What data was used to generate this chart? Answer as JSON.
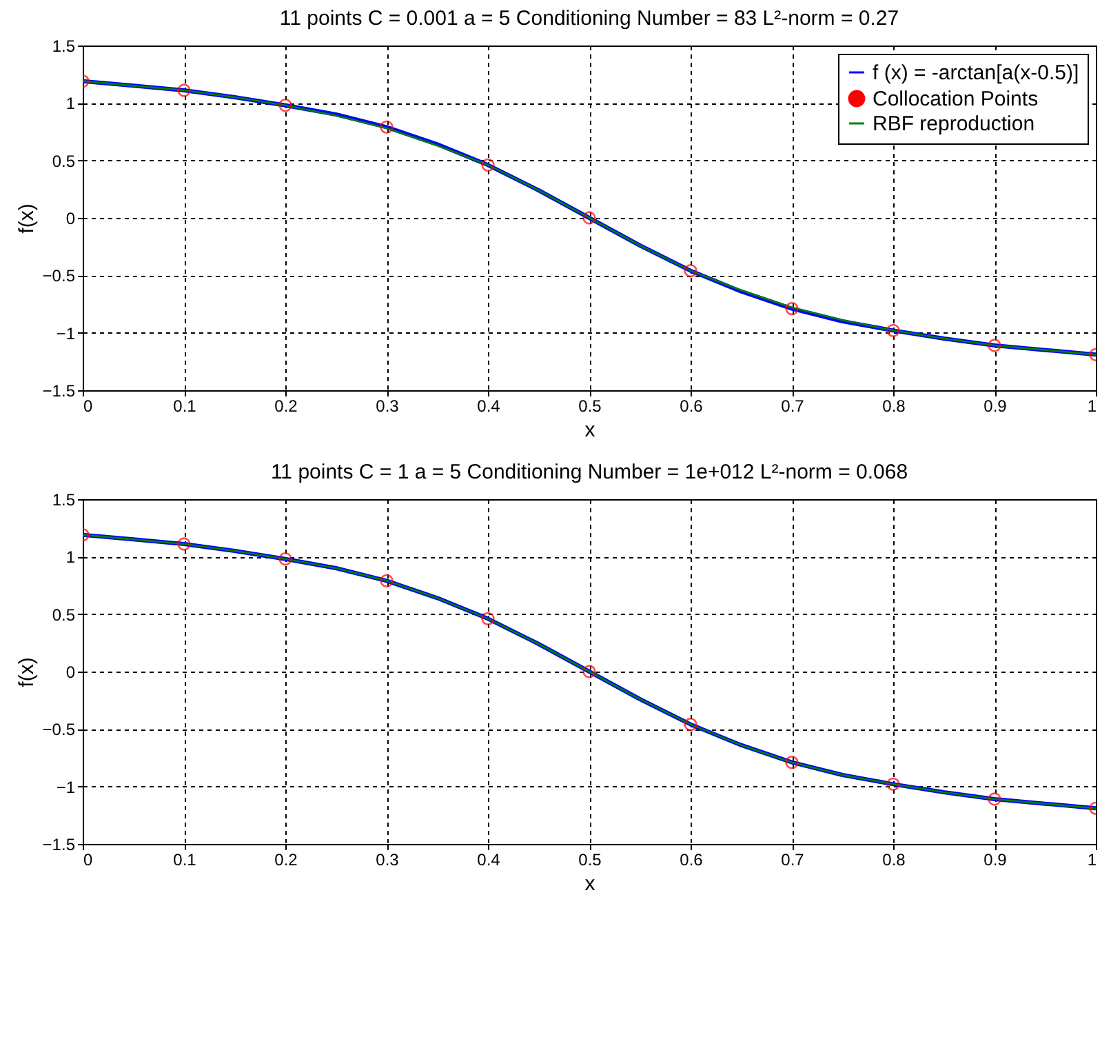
{
  "chart_data": [
    {
      "type": "line",
      "title": "11 points  C = 0.001  a = 5  Conditioning Number = 83  L²-norm = 0.27",
      "xlabel": "x",
      "ylabel": "f(x)",
      "xlim": [
        0,
        1
      ],
      "ylim": [
        -1.5,
        1.5
      ],
      "xticks": [
        0,
        0.1,
        0.2,
        0.3,
        0.4,
        0.5,
        0.6,
        0.7,
        0.8,
        0.9,
        1
      ],
      "yticks": [
        -1.5,
        -1,
        -0.5,
        0,
        0.5,
        1,
        1.5
      ],
      "grid": true,
      "legend": "top right",
      "series": [
        {
          "name": "f (x) = -arctan[a(x-0.5)]",
          "color": "#0000ff",
          "x": [
            0,
            0.05,
            0.1,
            0.15,
            0.2,
            0.25,
            0.3,
            0.35,
            0.4,
            0.45,
            0.5,
            0.55,
            0.6,
            0.65,
            0.7,
            0.75,
            0.8,
            0.85,
            0.9,
            0.95,
            1
          ],
          "values": [
            1.19,
            1.15,
            1.11,
            1.05,
            0.98,
            0.9,
            0.79,
            0.64,
            0.46,
            0.24,
            0,
            -0.24,
            -0.46,
            -0.64,
            -0.79,
            -0.9,
            -0.98,
            -1.05,
            -1.11,
            -1.15,
            -1.19
          ]
        },
        {
          "name": "Collocation Points",
          "type": "scatter",
          "marker": "circle",
          "color": "#ff0000",
          "x": [
            0,
            0.1,
            0.2,
            0.3,
            0.4,
            0.5,
            0.6,
            0.7,
            0.8,
            0.9,
            1
          ],
          "values": [
            1.19,
            1.11,
            0.98,
            0.79,
            0.46,
            0,
            -0.46,
            -0.79,
            -0.98,
            -1.11,
            -1.19
          ]
        },
        {
          "name": "RBF reproduction",
          "color": "#008000",
          "x": [
            0,
            0.05,
            0.1,
            0.15,
            0.2,
            0.25,
            0.3,
            0.35,
            0.4,
            0.45,
            0.5,
            0.55,
            0.6,
            0.65,
            0.7,
            0.75,
            0.8,
            0.85,
            0.9,
            0.95,
            1
          ],
          "values": [
            1.19,
            1.15,
            1.11,
            1.05,
            0.98,
            0.89,
            0.78,
            0.63,
            0.46,
            0.24,
            0,
            -0.24,
            -0.46,
            -0.63,
            -0.78,
            -0.89,
            -0.98,
            -1.05,
            -1.11,
            -1.15,
            -1.19
          ]
        }
      ]
    },
    {
      "type": "line",
      "title": "11 points  C = 1  a = 5  Conditioning Number = 1e+012  L²-norm = 0.068",
      "xlabel": "x",
      "ylabel": "f(x)",
      "xlim": [
        0,
        1
      ],
      "ylim": [
        -1.5,
        1.5
      ],
      "xticks": [
        0,
        0.1,
        0.2,
        0.3,
        0.4,
        0.5,
        0.6,
        0.7,
        0.8,
        0.9,
        1
      ],
      "yticks": [
        -1.5,
        -1,
        -0.5,
        0,
        0.5,
        1,
        1.5
      ],
      "grid": true,
      "legend": "top right",
      "series": [
        {
          "name": "f (x) = -arctan[a(x-0.5)]",
          "color": "#0000ff",
          "x": [
            0,
            0.05,
            0.1,
            0.15,
            0.2,
            0.25,
            0.3,
            0.35,
            0.4,
            0.45,
            0.5,
            0.55,
            0.6,
            0.65,
            0.7,
            0.75,
            0.8,
            0.85,
            0.9,
            0.95,
            1
          ],
          "values": [
            1.19,
            1.15,
            1.11,
            1.05,
            0.98,
            0.9,
            0.79,
            0.64,
            0.46,
            0.24,
            0,
            -0.24,
            -0.46,
            -0.64,
            -0.79,
            -0.9,
            -0.98,
            -1.05,
            -1.11,
            -1.15,
            -1.19
          ]
        },
        {
          "name": "Collocation Points",
          "type": "scatter",
          "marker": "circle",
          "color": "#ff0000",
          "x": [
            0,
            0.1,
            0.2,
            0.3,
            0.4,
            0.5,
            0.6,
            0.7,
            0.8,
            0.9,
            1
          ],
          "values": [
            1.19,
            1.11,
            0.98,
            0.79,
            0.46,
            0,
            -0.46,
            -0.79,
            -0.98,
            -1.11,
            -1.19
          ]
        },
        {
          "name": "RBF reproduction",
          "color": "#008000",
          "x": [
            0,
            0.05,
            0.1,
            0.15,
            0.2,
            0.25,
            0.3,
            0.35,
            0.4,
            0.45,
            0.5,
            0.55,
            0.6,
            0.65,
            0.7,
            0.75,
            0.8,
            0.85,
            0.9,
            0.95,
            1
          ],
          "values": [
            1.19,
            1.15,
            1.11,
            1.05,
            0.98,
            0.9,
            0.79,
            0.64,
            0.46,
            0.24,
            0,
            -0.24,
            -0.46,
            -0.64,
            -0.79,
            -0.9,
            -0.98,
            -1.05,
            -1.11,
            -1.15,
            -1.19
          ]
        }
      ]
    }
  ]
}
